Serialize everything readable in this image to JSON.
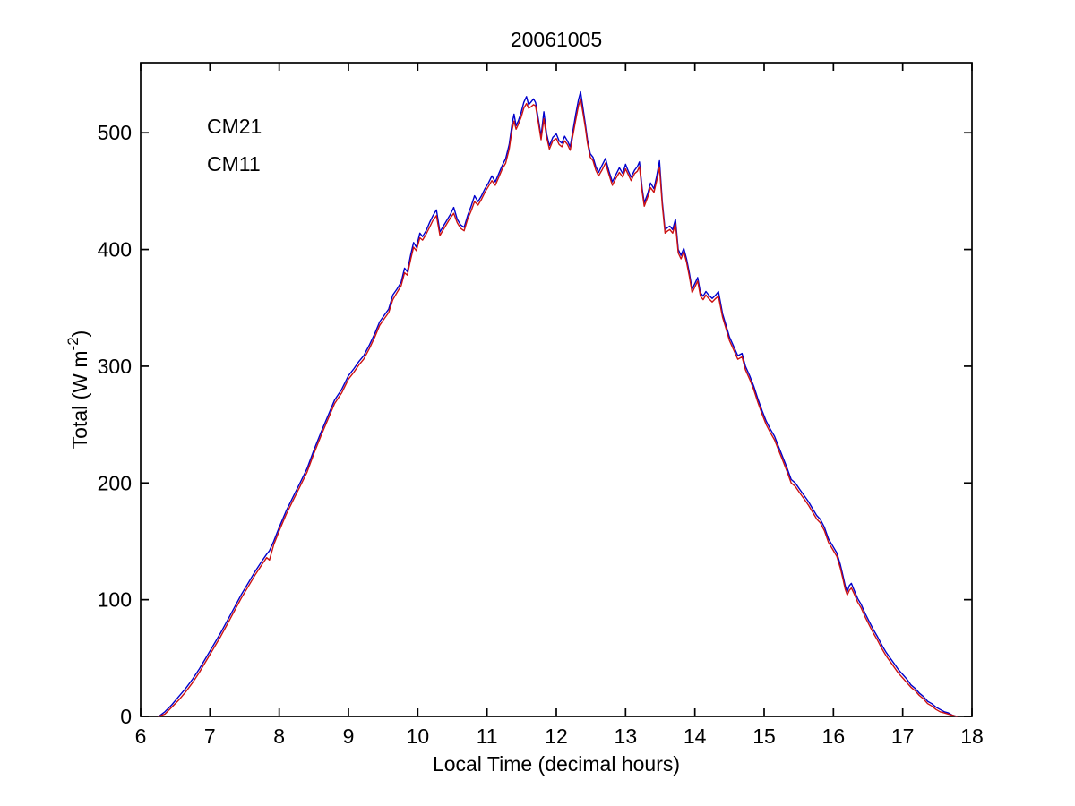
{
  "chart_data": {
    "type": "line",
    "title": "20061005",
    "xlabel": "Local Time (decimal hours)",
    "ylabel_prefix": "Total (W m",
    "ylabel_sup": "-2",
    "ylabel_suffix": ")",
    "xlim": [
      6,
      18
    ],
    "ylim": [
      0,
      560
    ],
    "xticks": [
      6,
      7,
      8,
      9,
      10,
      11,
      12,
      13,
      14,
      15,
      16,
      17,
      18
    ],
    "yticks": [
      0,
      100,
      200,
      300,
      400,
      500
    ],
    "grid": false,
    "legend_position": "upper-left-inside",
    "axis_color": "#000000",
    "series": [
      {
        "name": "CM21",
        "color": "#0000cc"
      },
      {
        "name": "CM11",
        "color": "#cc1111"
      }
    ],
    "points_format": [
      "time_decimal_hours",
      "CM21_W_m-2",
      "CM11_W_m-2"
    ],
    "points": [
      [
        6.26,
        0,
        0
      ],
      [
        6.35,
        4,
        2
      ],
      [
        6.45,
        10,
        8
      ],
      [
        6.55,
        17,
        14
      ],
      [
        6.65,
        24,
        21
      ],
      [
        6.75,
        32,
        29
      ],
      [
        6.85,
        41,
        38
      ],
      [
        6.95,
        51,
        48
      ],
      [
        7.05,
        61,
        58
      ],
      [
        7.15,
        71,
        68
      ],
      [
        7.25,
        82,
        79
      ],
      [
        7.35,
        93,
        90
      ],
      [
        7.45,
        104,
        101
      ],
      [
        7.55,
        114,
        111
      ],
      [
        7.65,
        124,
        121
      ],
      [
        7.75,
        133,
        130
      ],
      [
        7.82,
        139,
        136
      ],
      [
        7.86,
        142,
        134
      ],
      [
        7.92,
        150,
        147
      ],
      [
        8.0,
        162,
        159
      ],
      [
        8.1,
        176,
        173
      ],
      [
        8.2,
        188,
        185
      ],
      [
        8.3,
        200,
        197
      ],
      [
        8.4,
        212,
        209
      ],
      [
        8.5,
        228,
        225
      ],
      [
        8.6,
        243,
        240
      ],
      [
        8.7,
        257,
        254
      ],
      [
        8.8,
        271,
        268
      ],
      [
        8.9,
        280,
        277
      ],
      [
        9.0,
        292,
        289
      ],
      [
        9.08,
        298,
        295
      ],
      [
        9.15,
        304,
        301
      ],
      [
        9.22,
        309,
        306
      ],
      [
        9.3,
        318,
        315
      ],
      [
        9.38,
        328,
        325
      ],
      [
        9.45,
        338,
        335
      ],
      [
        9.52,
        344,
        341
      ],
      [
        9.58,
        349,
        346
      ],
      [
        9.64,
        361,
        357
      ],
      [
        9.7,
        366,
        363
      ],
      [
        9.76,
        372,
        369
      ],
      [
        9.81,
        384,
        380
      ],
      [
        9.85,
        381,
        378
      ],
      [
        9.9,
        396,
        392
      ],
      [
        9.94,
        406,
        402
      ],
      [
        9.98,
        402,
        399
      ],
      [
        10.03,
        414,
        410
      ],
      [
        10.07,
        411,
        408
      ],
      [
        10.12,
        416,
        413
      ],
      [
        10.17,
        423,
        419
      ],
      [
        10.22,
        429,
        425
      ],
      [
        10.27,
        434,
        429
      ],
      [
        10.32,
        415,
        412
      ],
      [
        10.37,
        420,
        417
      ],
      [
        10.42,
        425,
        422
      ],
      [
        10.47,
        430,
        427
      ],
      [
        10.52,
        436,
        431
      ],
      [
        10.57,
        426,
        423
      ],
      [
        10.62,
        421,
        418
      ],
      [
        10.67,
        419,
        416
      ],
      [
        10.72,
        429,
        426
      ],
      [
        10.77,
        437,
        433
      ],
      [
        10.82,
        446,
        441
      ],
      [
        10.87,
        441,
        438
      ],
      [
        10.92,
        446,
        443
      ],
      [
        10.97,
        452,
        449
      ],
      [
        11.02,
        457,
        454
      ],
      [
        11.07,
        463,
        459
      ],
      [
        11.12,
        458,
        455
      ],
      [
        11.17,
        465,
        462
      ],
      [
        11.22,
        472,
        469
      ],
      [
        11.27,
        478,
        474
      ],
      [
        11.32,
        490,
        486
      ],
      [
        11.36,
        507,
        502
      ],
      [
        11.39,
        516,
        510
      ],
      [
        11.42,
        506,
        503
      ],
      [
        11.45,
        510,
        507
      ],
      [
        11.49,
        517,
        513
      ],
      [
        11.53,
        526,
        521
      ],
      [
        11.57,
        531,
        525
      ],
      [
        11.6,
        524,
        521
      ],
      [
        11.63,
        526,
        522
      ],
      [
        11.67,
        529,
        524
      ],
      [
        11.7,
        526,
        523
      ],
      [
        11.74,
        512,
        509
      ],
      [
        11.78,
        497,
        494
      ],
      [
        11.82,
        518,
        512
      ],
      [
        11.86,
        499,
        496
      ],
      [
        11.9,
        489,
        486
      ],
      [
        11.95,
        496,
        493
      ],
      [
        12.0,
        499,
        495
      ],
      [
        12.04,
        493,
        490
      ],
      [
        12.08,
        491,
        488
      ],
      [
        12.12,
        497,
        493
      ],
      [
        12.16,
        493,
        490
      ],
      [
        12.2,
        488,
        485
      ],
      [
        12.24,
        502,
        498
      ],
      [
        12.28,
        516,
        511
      ],
      [
        12.32,
        528,
        523
      ],
      [
        12.35,
        535,
        529
      ],
      [
        12.39,
        519,
        515
      ],
      [
        12.42,
        507,
        504
      ],
      [
        12.45,
        494,
        491
      ],
      [
        12.49,
        482,
        479
      ],
      [
        12.53,
        479,
        476
      ],
      [
        12.57,
        471,
        468
      ],
      [
        12.61,
        466,
        463
      ],
      [
        12.66,
        472,
        468
      ],
      [
        12.71,
        478,
        474
      ],
      [
        12.76,
        467,
        464
      ],
      [
        12.81,
        458,
        455
      ],
      [
        12.86,
        464,
        461
      ],
      [
        12.91,
        470,
        466
      ],
      [
        12.96,
        465,
        462
      ],
      [
        13.0,
        473,
        469
      ],
      [
        13.04,
        467,
        464
      ],
      [
        13.08,
        462,
        459
      ],
      [
        13.13,
        468,
        465
      ],
      [
        13.17,
        471,
        467
      ],
      [
        13.2,
        475,
        471
      ],
      [
        13.24,
        452,
        449
      ],
      [
        13.27,
        440,
        437
      ],
      [
        13.32,
        448,
        445
      ],
      [
        13.36,
        457,
        453
      ],
      [
        13.41,
        452,
        449
      ],
      [
        13.45,
        463,
        459
      ],
      [
        13.49,
        476,
        470
      ],
      [
        13.53,
        441,
        438
      ],
      [
        13.57,
        417,
        414
      ],
      [
        13.61,
        419,
        416
      ],
      [
        13.64,
        420,
        417
      ],
      [
        13.68,
        417,
        414
      ],
      [
        13.72,
        426,
        422
      ],
      [
        13.76,
        400,
        397
      ],
      [
        13.8,
        395,
        392
      ],
      [
        13.84,
        401,
        398
      ],
      [
        13.88,
        392,
        389
      ],
      [
        13.92,
        380,
        377
      ],
      [
        13.96,
        366,
        363
      ],
      [
        14.0,
        371,
        368
      ],
      [
        14.04,
        376,
        373
      ],
      [
        14.08,
        363,
        360
      ],
      [
        14.12,
        360,
        357
      ],
      [
        14.16,
        364,
        361
      ],
      [
        14.2,
        361,
        358
      ],
      [
        14.25,
        358,
        355
      ],
      [
        14.3,
        361,
        358
      ],
      [
        14.34,
        364,
        360
      ],
      [
        14.4,
        345,
        342
      ],
      [
        14.45,
        335,
        332
      ],
      [
        14.5,
        325,
        322
      ],
      [
        14.56,
        317,
        314
      ],
      [
        14.62,
        309,
        306
      ],
      [
        14.68,
        311,
        308
      ],
      [
        14.73,
        300,
        297
      ],
      [
        14.79,
        292,
        289
      ],
      [
        14.85,
        283,
        280
      ],
      [
        14.91,
        272,
        269
      ],
      [
        14.97,
        262,
        259
      ],
      [
        15.03,
        253,
        250
      ],
      [
        15.09,
        246,
        243
      ],
      [
        15.15,
        240,
        237
      ],
      [
        15.21,
        231,
        228
      ],
      [
        15.27,
        222,
        219
      ],
      [
        15.33,
        213,
        210
      ],
      [
        15.39,
        203,
        200
      ],
      [
        15.45,
        200,
        197
      ],
      [
        15.52,
        194,
        191
      ],
      [
        15.58,
        189,
        186
      ],
      [
        15.64,
        184,
        181
      ],
      [
        15.7,
        178,
        175
      ],
      [
        15.76,
        172,
        169
      ],
      [
        15.81,
        169,
        166
      ],
      [
        15.87,
        162,
        159
      ],
      [
        15.93,
        152,
        149
      ],
      [
        15.99,
        146,
        143
      ],
      [
        16.05,
        140,
        137
      ],
      [
        16.1,
        130,
        127
      ],
      [
        16.14,
        120,
        117
      ],
      [
        16.17,
        112,
        109
      ],
      [
        16.2,
        107,
        104
      ],
      [
        16.23,
        112,
        108
      ],
      [
        16.26,
        114,
        110
      ],
      [
        16.3,
        108,
        105
      ],
      [
        16.35,
        101,
        98
      ],
      [
        16.4,
        96,
        93
      ],
      [
        16.46,
        88,
        85
      ],
      [
        16.52,
        81,
        78
      ],
      [
        16.58,
        74,
        71
      ],
      [
        16.64,
        68,
        65
      ],
      [
        16.7,
        61,
        58
      ],
      [
        16.76,
        55,
        52
      ],
      [
        16.82,
        50,
        47
      ],
      [
        16.88,
        45,
        42
      ],
      [
        16.94,
        40,
        37
      ],
      [
        17.0,
        36,
        33
      ],
      [
        17.06,
        32,
        29
      ],
      [
        17.12,
        27,
        25
      ],
      [
        17.18,
        24,
        22
      ],
      [
        17.24,
        20,
        18
      ],
      [
        17.3,
        17,
        15
      ],
      [
        17.36,
        13,
        11
      ],
      [
        17.42,
        11,
        9
      ],
      [
        17.48,
        8,
        6
      ],
      [
        17.54,
        6,
        4
      ],
      [
        17.6,
        4,
        3
      ],
      [
        17.66,
        3,
        2
      ],
      [
        17.72,
        1,
        1
      ],
      [
        17.78,
        0,
        0
      ]
    ]
  },
  "legend": {
    "entries": [
      {
        "label": "CM21",
        "color": "#0000cc"
      },
      {
        "label": "CM11",
        "color": "#cc1111"
      }
    ]
  }
}
